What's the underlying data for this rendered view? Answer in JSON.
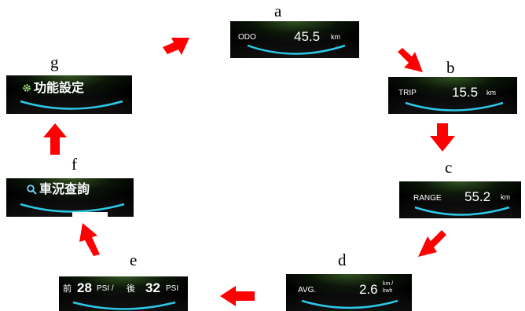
{
  "labels": {
    "a": "a",
    "b": "b",
    "c": "c",
    "d": "d",
    "e": "e",
    "f": "f",
    "g": "g"
  },
  "panels": {
    "odo": {
      "label": "ODO",
      "value": "45.5",
      "unit": "km"
    },
    "trip": {
      "label": "TRIP",
      "value": "15.5",
      "unit": "km"
    },
    "range": {
      "label": "RANGE",
      "value": "55.2",
      "unit": "km"
    },
    "avg": {
      "label": "AVG.",
      "value": "2.6",
      "unit_top": "km /",
      "unit_bottom": "kwh"
    },
    "tire": {
      "front_label": "前",
      "front_value": "28",
      "front_unit": "PSI /",
      "rear_label": "後",
      "rear_value": "32",
      "rear_unit": "PSI"
    },
    "status": {
      "icon": "search-icon",
      "text": "車況查詢"
    },
    "settings": {
      "icon": "gear-icon",
      "text": "功能設定"
    }
  },
  "colors": {
    "arrow": "#ff0000",
    "arc": "#2ec7e6",
    "glow": "#4a8a30",
    "panel_bg": "#000000"
  }
}
